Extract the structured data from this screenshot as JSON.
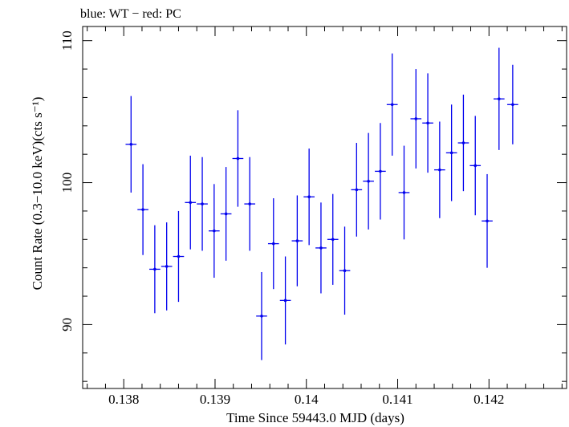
{
  "header": {
    "label": "blue: WT − red: PC"
  },
  "chart_data": {
    "type": "scatter",
    "title": "blue: WT − red: PC",
    "xlabel": "Time Since 59443.0 MJD (days)",
    "ylabel": "Count Rate (0.3−10.0 keV)(cts s⁻¹)",
    "xlim": [
      0.13755,
      0.14285
    ],
    "ylim": [
      85.5,
      111.0
    ],
    "xticks": [
      0.138,
      0.139,
      0.14,
      0.141,
      0.142
    ],
    "xtick_labels": [
      "0.138",
      "0.139",
      "0.14",
      "0.141",
      "0.142"
    ],
    "yticks": [
      90,
      100,
      110
    ],
    "ytick_labels": [
      "90",
      "100",
      "110"
    ],
    "grid": false,
    "legend": "none",
    "colors": {
      "wt": "#0000ee",
      "pc": "#ee0000",
      "axis": "#000000"
    },
    "series": [
      {
        "name": "WT",
        "color": "#0000ee",
        "x_err": 6e-05,
        "points": [
          {
            "x": 0.13808,
            "y": 102.7,
            "yerr": 3.4
          },
          {
            "x": 0.13821,
            "y": 98.1,
            "yerr": 3.2
          },
          {
            "x": 0.13834,
            "y": 93.9,
            "yerr": 3.1
          },
          {
            "x": 0.13847,
            "y": 94.1,
            "yerr": 3.1
          },
          {
            "x": 0.1386,
            "y": 94.8,
            "yerr": 3.2
          },
          {
            "x": 0.13873,
            "y": 98.6,
            "yerr": 3.3
          },
          {
            "x": 0.13886,
            "y": 98.5,
            "yerr": 3.3
          },
          {
            "x": 0.13899,
            "y": 96.6,
            "yerr": 3.3
          },
          {
            "x": 0.13912,
            "y": 97.8,
            "yerr": 3.3
          },
          {
            "x": 0.13925,
            "y": 101.7,
            "yerr": 3.4
          },
          {
            "x": 0.13938,
            "y": 98.5,
            "yerr": 3.3
          },
          {
            "x": 0.13951,
            "y": 90.6,
            "yerr": 3.1
          },
          {
            "x": 0.13964,
            "y": 95.7,
            "yerr": 3.2
          },
          {
            "x": 0.13977,
            "y": 91.7,
            "yerr": 3.1
          },
          {
            "x": 0.1399,
            "y": 95.9,
            "yerr": 3.2
          },
          {
            "x": 0.14003,
            "y": 99.0,
            "yerr": 3.4
          },
          {
            "x": 0.14016,
            "y": 95.4,
            "yerr": 3.2
          },
          {
            "x": 0.14029,
            "y": 96.0,
            "yerr": 3.2
          },
          {
            "x": 0.14042,
            "y": 93.8,
            "yerr": 3.1
          },
          {
            "x": 0.14055,
            "y": 99.5,
            "yerr": 3.3
          },
          {
            "x": 0.14068,
            "y": 100.1,
            "yerr": 3.4
          },
          {
            "x": 0.14081,
            "y": 100.8,
            "yerr": 3.4
          },
          {
            "x": 0.14094,
            "y": 105.5,
            "yerr": 3.6
          },
          {
            "x": 0.14107,
            "y": 99.3,
            "yerr": 3.3
          },
          {
            "x": 0.1412,
            "y": 104.5,
            "yerr": 3.5
          },
          {
            "x": 0.14133,
            "y": 104.2,
            "yerr": 3.5
          },
          {
            "x": 0.14146,
            "y": 100.9,
            "yerr": 3.4
          },
          {
            "x": 0.14159,
            "y": 102.1,
            "yerr": 3.4
          },
          {
            "x": 0.14172,
            "y": 102.8,
            "yerr": 3.4
          },
          {
            "x": 0.14185,
            "y": 101.2,
            "yerr": 3.5
          },
          {
            "x": 0.14198,
            "y": 97.3,
            "yerr": 3.3
          },
          {
            "x": 0.14211,
            "y": 105.9,
            "yerr": 3.6
          },
          {
            "x": 0.14226,
            "y": 105.5,
            "yerr": 2.8
          }
        ]
      }
    ]
  }
}
